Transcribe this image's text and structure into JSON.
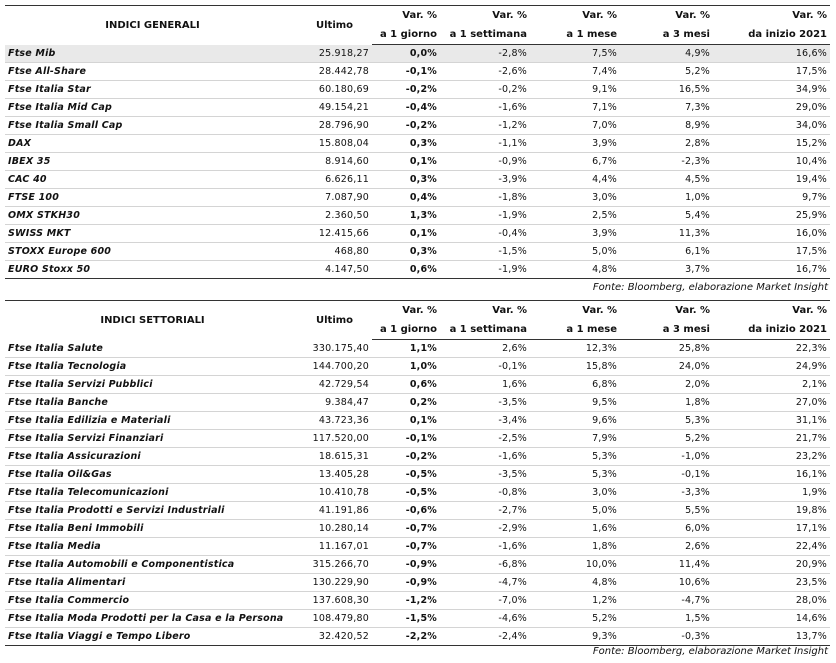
{
  "tables": [
    {
      "header": {
        "name": "INDICI GENERALI",
        "last": "Ultimo",
        "vars": [
          [
            "Var. %",
            "a 1 giorno"
          ],
          [
            "Var. %",
            "a 1 settimana"
          ],
          [
            "Var. %",
            "a 1 mese"
          ],
          [
            "Var. %",
            "a 3 mesi"
          ],
          [
            "Var. %",
            "da inizio 2021"
          ]
        ]
      },
      "groups": [
        [
          [
            "Ftse Mib",
            "25.918,27",
            "0,0%",
            "-2,8%",
            "7,5%",
            "4,9%",
            "16,6%"
          ],
          [
            "Ftse All-Share",
            "28.442,78",
            "-0,1%",
            "-2,6%",
            "7,4%",
            "5,2%",
            "17,5%"
          ],
          [
            "Ftse Italia Star",
            "60.180,69",
            "-0,2%",
            "-0,2%",
            "9,1%",
            "16,5%",
            "34,9%"
          ],
          [
            "Ftse Italia Mid Cap",
            "49.154,21",
            "-0,4%",
            "-1,6%",
            "7,1%",
            "7,3%",
            "29,0%"
          ],
          [
            "Ftse Italia Small Cap",
            "28.796,90",
            "-0,2%",
            "-1,2%",
            "7,0%",
            "8,9%",
            "34,0%"
          ]
        ],
        [
          [
            "DAX",
            "15.808,04",
            "0,3%",
            "-1,1%",
            "3,9%",
            "2,8%",
            "15,2%"
          ],
          [
            "IBEX 35",
            "8.914,60",
            "0,1%",
            "-0,9%",
            "6,7%",
            "-2,3%",
            "10,4%"
          ],
          [
            "CAC 40",
            "6.626,11",
            "0,3%",
            "-3,9%",
            "4,4%",
            "4,5%",
            "19,4%"
          ],
          [
            "FTSE 100",
            "7.087,90",
            "0,4%",
            "-1,8%",
            "3,0%",
            "1,0%",
            "9,7%"
          ],
          [
            "OMX STKH30",
            "2.360,50",
            "1,3%",
            "-1,9%",
            "2,5%",
            "5,4%",
            "25,9%"
          ],
          [
            "SWISS MKT",
            "12.415,66",
            "0,1%",
            "-0,4%",
            "3,9%",
            "11,3%",
            "16,0%"
          ],
          [
            "STOXX Europe 600",
            "468,80",
            "0,3%",
            "-1,5%",
            "5,0%",
            "6,1%",
            "17,5%"
          ],
          [
            "EURO Stoxx 50",
            "4.147,50",
            "0,6%",
            "-1,9%",
            "4,8%",
            "3,7%",
            "16,7%"
          ]
        ]
      ],
      "source": "Fonte: Bloomberg, elaborazione Market Insight"
    },
    {
      "header": {
        "name": "INDICI SETTORIALI",
        "last": "Ultimo",
        "vars": [
          [
            "Var. %",
            "a 1 giorno"
          ],
          [
            "Var. %",
            "a 1 settimana"
          ],
          [
            "Var. %",
            "a 1 mese"
          ],
          [
            "Var. %",
            "a 3 mesi"
          ],
          [
            "Var. %",
            "da inizio 2021"
          ]
        ]
      },
      "groups": [
        [
          [
            "Ftse Italia Salute",
            "330.175,40",
            "1,1%",
            "2,6%",
            "12,3%",
            "25,8%",
            "22,3%"
          ],
          [
            "Ftse Italia Tecnologia",
            "144.700,20",
            "1,0%",
            "-0,1%",
            "15,8%",
            "24,0%",
            "24,9%"
          ],
          [
            "Ftse Italia Servizi Pubblici",
            "42.729,54",
            "0,6%",
            "1,6%",
            "6,8%",
            "2,0%",
            "2,1%"
          ],
          [
            "Ftse Italia Banche",
            "9.384,47",
            "0,2%",
            "-3,5%",
            "9,5%",
            "1,8%",
            "27,0%"
          ],
          [
            "Ftse Italia Edilizia e Materiali",
            "43.723,36",
            "0,1%",
            "-3,4%",
            "9,6%",
            "5,3%",
            "31,1%"
          ],
          [
            "Ftse Italia Servizi Finanziari",
            "117.520,00",
            "-0,1%",
            "-2,5%",
            "7,9%",
            "5,2%",
            "21,7%"
          ],
          [
            "Ftse Italia Assicurazioni",
            "18.615,31",
            "-0,2%",
            "-1,6%",
            "5,3%",
            "-1,0%",
            "23,2%"
          ],
          [
            "Ftse Italia Oil&Gas",
            "13.405,28",
            "-0,5%",
            "-3,5%",
            "5,3%",
            "-0,1%",
            "16,1%"
          ],
          [
            "Ftse Italia Telecomunicazioni",
            "10.410,78",
            "-0,5%",
            "-0,8%",
            "3,0%",
            "-3,3%",
            "1,9%"
          ],
          [
            "Ftse Italia Prodotti e Servizi Industriali",
            "41.191,86",
            "-0,6%",
            "-2,7%",
            "5,0%",
            "5,5%",
            "19,8%"
          ],
          [
            "Ftse Italia Beni Immobili",
            "10.280,14",
            "-0,7%",
            "-2,9%",
            "1,6%",
            "6,0%",
            "17,1%"
          ],
          [
            "Ftse Italia Media",
            "11.167,01",
            "-0,7%",
            "-1,6%",
            "1,8%",
            "2,6%",
            "22,4%"
          ],
          [
            "Ftse Italia Automobili e Componentistica",
            "315.266,70",
            "-0,9%",
            "-6,8%",
            "10,0%",
            "11,4%",
            "20,9%"
          ],
          [
            "Ftse Italia Alimentari",
            "130.229,90",
            "-0,9%",
            "-4,7%",
            "4,8%",
            "10,6%",
            "23,5%"
          ],
          [
            "Ftse Italia Commercio",
            "137.608,30",
            "-1,2%",
            "-7,0%",
            "1,2%",
            "-4,7%",
            "28,0%"
          ],
          [
            "Ftse Italia Moda Prodotti per la Casa e la Persona",
            "108.479,80",
            "-1,5%",
            "-4,6%",
            "5,2%",
            "1,5%",
            "14,6%"
          ],
          [
            "Ftse Italia Viaggi e Tempo Libero",
            "32.420,52",
            "-2,2%",
            "-2,4%",
            "9,3%",
            "-0,3%",
            "13,7%"
          ]
        ]
      ],
      "source": "Fonte: Bloomberg, elaborazione Market Insight"
    }
  ]
}
